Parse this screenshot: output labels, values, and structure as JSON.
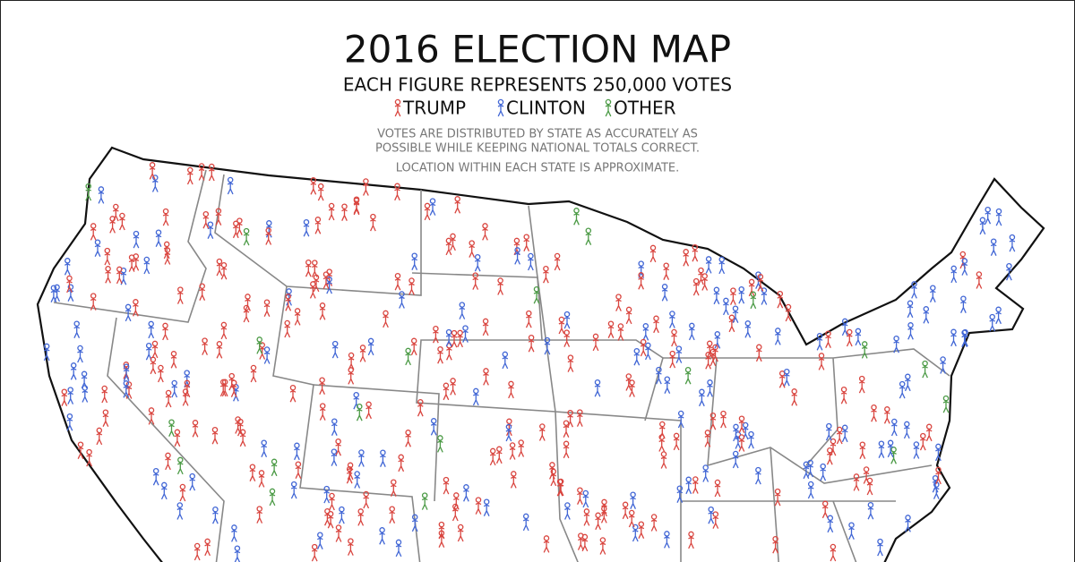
{
  "title": "2016 ELECTION MAP",
  "subtitle": "EACH FIGURE REPRESENTS 250,000 VOTES",
  "legend": [
    {
      "label": "TRUMP",
      "color": "#d9453f"
    },
    {
      "label": "CLINTON",
      "color": "#4166d5"
    },
    {
      "label": "OTHER",
      "color": "#4b9a45"
    }
  ],
  "notes": [
    "VOTES ARE DISTRIBUTED BY STATE AS ACCURATELY AS",
    "POSSIBLE WHILE KEEPING NATIONAL TOTALS CORRECT.",
    "LOCATION WITHIN EACH STATE IS APPROXIMATE."
  ]
}
